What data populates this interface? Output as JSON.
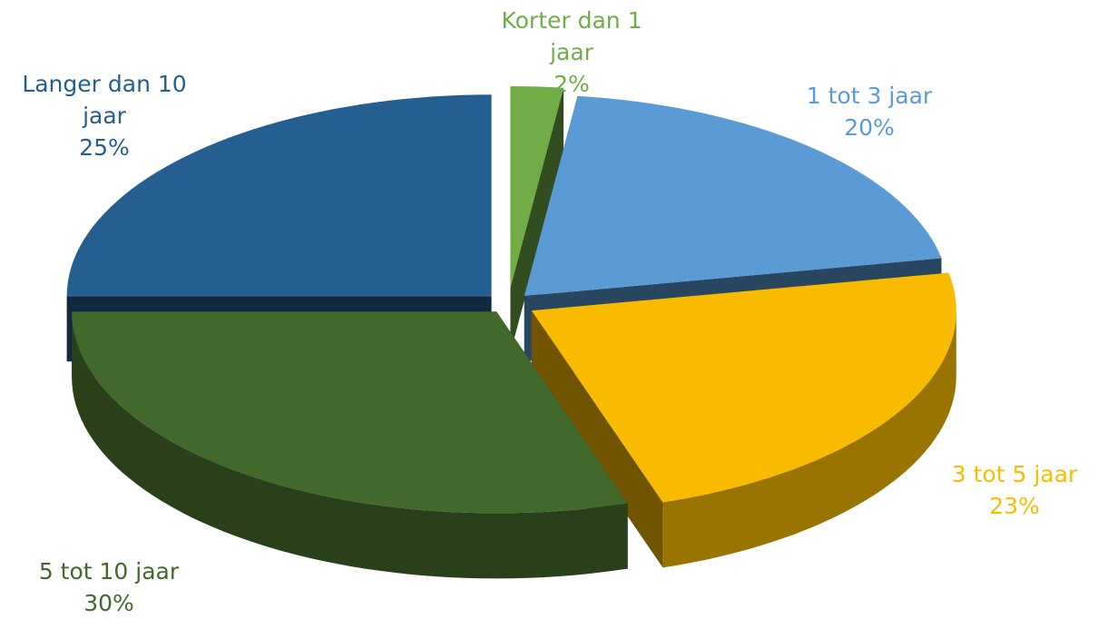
{
  "chart_data": {
    "type": "pie",
    "categories": [
      "Korter dan 1 jaar",
      "1 tot 3 jaar",
      "3 tot 5 jaar",
      "5 tot 10 jaar",
      "Langer dan 10 jaar"
    ],
    "values": [
      2,
      20,
      23,
      30,
      25
    ],
    "value_labels": [
      "2%",
      "20%",
      "23%",
      "30%",
      "25%"
    ],
    "colors": [
      "#70ad47",
      "#5b9bd5",
      "#f9bb00",
      "#43682b",
      "#255e91"
    ]
  }
}
